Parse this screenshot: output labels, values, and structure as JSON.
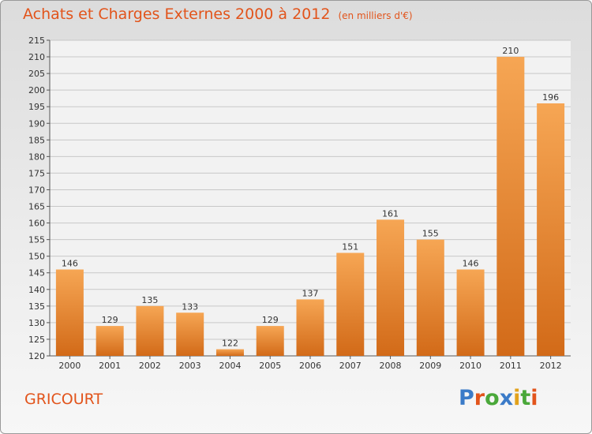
{
  "title": "Achats et Charges Externes 2000 à 2012",
  "unit_note": "(en milliers d'€)",
  "commune": "GRICOURT",
  "logo": {
    "text": "Proxiti",
    "letter_colors": [
      "#3b7bc8",
      "#e2541b",
      "#4aa83a",
      "#3b7bc8",
      "#e2a21b",
      "#4aa83a",
      "#e2541b"
    ]
  },
  "colors": {
    "title": "#e2541b",
    "bar_light": "#f6a654",
    "bar_dark": "#d26a18"
  },
  "chart_data": {
    "type": "bar",
    "categories": [
      "2000",
      "2001",
      "2002",
      "2003",
      "2004",
      "2005",
      "2006",
      "2007",
      "2008",
      "2009",
      "2010",
      "2011",
      "2012"
    ],
    "values": [
      146,
      129,
      135,
      133,
      122,
      129,
      137,
      151,
      161,
      155,
      146,
      210,
      196
    ],
    "ylim": [
      120,
      215
    ],
    "yticks": [
      120,
      125,
      130,
      135,
      140,
      145,
      150,
      155,
      160,
      165,
      170,
      175,
      180,
      185,
      190,
      195,
      200,
      205,
      210,
      215
    ],
    "grid": true,
    "legend": "none",
    "data_labels": true
  }
}
